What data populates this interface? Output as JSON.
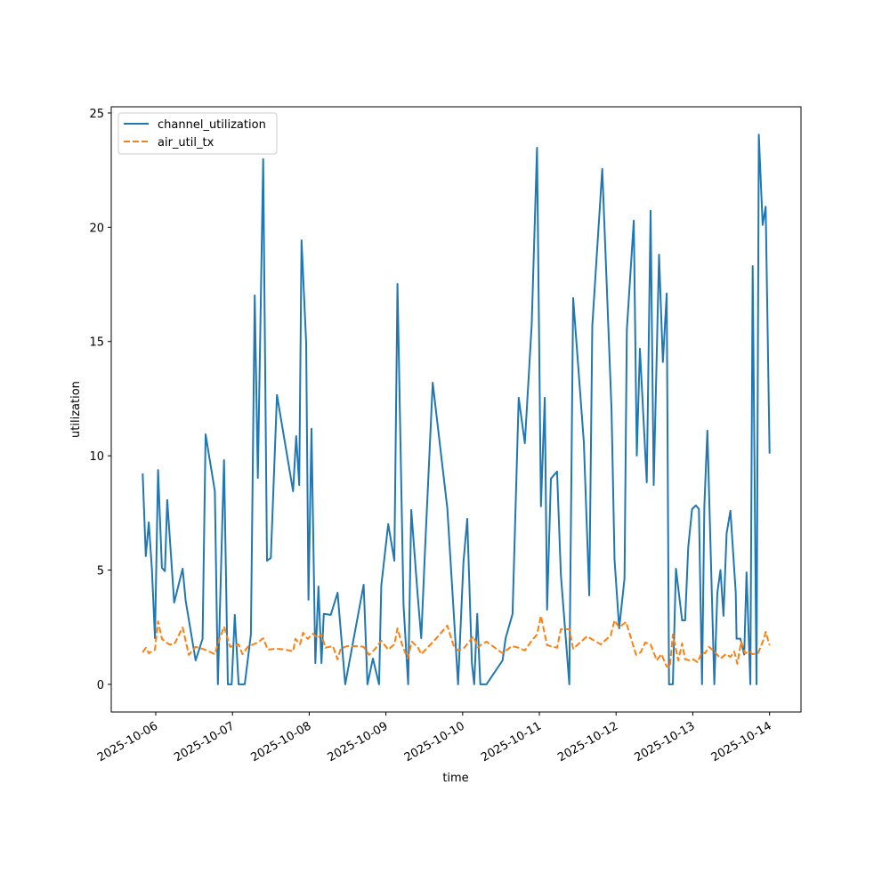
{
  "chart_data": {
    "type": "line",
    "title": "",
    "xlabel": "time",
    "ylabel": "utilization",
    "x_unit": "days since 2025-10-06 00:00",
    "xlim": [
      -0.58,
      8.41
    ],
    "ylim": [
      -1.21,
      25.27
    ],
    "grid": false,
    "legend_position": "top-left",
    "x_ticks": [
      {
        "value": 0,
        "label": "2025-10-06"
      },
      {
        "value": 1,
        "label": "2025-10-07"
      },
      {
        "value": 2,
        "label": "2025-10-08"
      },
      {
        "value": 3,
        "label": "2025-10-09"
      },
      {
        "value": 4,
        "label": "2025-10-10"
      },
      {
        "value": 5,
        "label": "2025-10-11"
      },
      {
        "value": 6,
        "label": "2025-10-12"
      },
      {
        "value": 7,
        "label": "2025-10-13"
      },
      {
        "value": 8,
        "label": "2025-10-14"
      }
    ],
    "y_ticks": [
      {
        "value": 0,
        "label": "0"
      },
      {
        "value": 5,
        "label": "5"
      },
      {
        "value": 10,
        "label": "10"
      },
      {
        "value": 15,
        "label": "15"
      },
      {
        "value": 20,
        "label": "20"
      },
      {
        "value": 25,
        "label": "25"
      }
    ],
    "series": [
      {
        "name": "channel_utilization",
        "color": "#1f77b4",
        "style": "solid",
        "points": [
          [
            -0.17,
            9.23
          ],
          [
            -0.13,
            5.61
          ],
          [
            -0.09,
            7.09
          ],
          [
            -0.05,
            5.02
          ],
          [
            -0.01,
            2.02
          ],
          [
            0.03,
            9.38
          ],
          [
            0.08,
            5.1
          ],
          [
            0.12,
            4.95
          ],
          [
            0.15,
            8.06
          ],
          [
            0.24,
            3.58
          ],
          [
            0.35,
            5.06
          ],
          [
            0.39,
            3.66
          ],
          [
            0.52,
            1.05
          ],
          [
            0.61,
            1.99
          ],
          [
            0.65,
            10.94
          ],
          [
            0.77,
            8.45
          ],
          [
            0.81,
            0
          ],
          [
            0.89,
            9.81
          ],
          [
            0.94,
            0
          ],
          [
            0.99,
            0
          ],
          [
            1.03,
            3.04
          ],
          [
            1.08,
            0
          ],
          [
            1.16,
            0
          ],
          [
            1.24,
            2.18
          ],
          [
            1.29,
            17.02
          ],
          [
            1.33,
            9.03
          ],
          [
            1.4,
            22.98
          ],
          [
            1.45,
            5.41
          ],
          [
            1.5,
            5.53
          ],
          [
            1.58,
            12.66
          ],
          [
            1.79,
            8.45
          ],
          [
            1.83,
            10.86
          ],
          [
            1.87,
            8.72
          ],
          [
            1.9,
            19.43
          ],
          [
            1.96,
            14.95
          ],
          [
            1.99,
            3.7
          ],
          [
            2.03,
            11.18
          ],
          [
            2.08,
            0.93
          ],
          [
            2.12,
            4.28
          ],
          [
            2.16,
            0.93
          ],
          [
            2.19,
            3.08
          ],
          [
            2.28,
            3.04
          ],
          [
            2.37,
            4.01
          ],
          [
            2.47,
            0
          ],
          [
            2.71,
            4.36
          ],
          [
            2.76,
            0
          ],
          [
            2.83,
            1.13
          ],
          [
            2.91,
            0
          ],
          [
            2.94,
            4.32
          ],
          [
            3.03,
            7.01
          ],
          [
            3.11,
            5.41
          ],
          [
            3.15,
            17.52
          ],
          [
            3.23,
            3.47
          ],
          [
            3.29,
            0
          ],
          [
            3.33,
            7.63
          ],
          [
            3.41,
            4.05
          ],
          [
            3.46,
            2.02
          ],
          [
            3.51,
            5.92
          ],
          [
            3.61,
            13.2
          ],
          [
            3.8,
            7.71
          ],
          [
            3.94,
            0
          ],
          [
            4.01,
            5.33
          ],
          [
            4.06,
            7.24
          ],
          [
            4.12,
            0.93
          ],
          [
            4.15,
            0
          ],
          [
            4.19,
            3.08
          ],
          [
            4.23,
            0
          ],
          [
            4.31,
            0
          ],
          [
            4.52,
            1.05
          ],
          [
            4.56,
            2.02
          ],
          [
            4.65,
            3.08
          ],
          [
            4.73,
            12.54
          ],
          [
            4.81,
            10.55
          ],
          [
            4.9,
            15.73
          ],
          [
            4.97,
            23.48
          ],
          [
            5.02,
            7.79
          ],
          [
            5.07,
            12.54
          ],
          [
            5.1,
            3.27
          ],
          [
            5.15,
            9.0
          ],
          [
            5.23,
            9.31
          ],
          [
            5.28,
            4.79
          ],
          [
            5.39,
            0
          ],
          [
            5.44,
            16.9
          ],
          [
            5.58,
            10.59
          ],
          [
            5.65,
            3.89
          ],
          [
            5.69,
            15.69
          ],
          [
            5.82,
            22.55
          ],
          [
            5.94,
            12.03
          ],
          [
            5.98,
            5.45
          ],
          [
            6.04,
            2.45
          ],
          [
            6.11,
            4.63
          ],
          [
            6.14,
            15.5
          ],
          [
            6.23,
            20.29
          ],
          [
            6.27,
            10.01
          ],
          [
            6.31,
            14.68
          ],
          [
            6.4,
            8.84
          ],
          [
            6.45,
            20.72
          ],
          [
            6.49,
            8.72
          ],
          [
            6.56,
            18.8
          ],
          [
            6.61,
            14.1
          ],
          [
            6.66,
            17.1
          ],
          [
            6.69,
            0
          ],
          [
            6.74,
            0
          ],
          [
            6.78,
            5.06
          ],
          [
            6.86,
            2.8
          ],
          [
            6.9,
            2.8
          ],
          [
            6.94,
            6.0
          ],
          [
            6.99,
            7.67
          ],
          [
            7.04,
            7.83
          ],
          [
            7.08,
            7.67
          ],
          [
            7.12,
            0
          ],
          [
            7.15,
            7.8
          ],
          [
            7.19,
            11.1
          ],
          [
            7.28,
            0
          ],
          [
            7.32,
            4.0
          ],
          [
            7.36,
            5.0
          ],
          [
            7.4,
            3.0
          ],
          [
            7.44,
            6.6
          ],
          [
            7.49,
            7.6
          ],
          [
            7.56,
            4.0
          ],
          [
            7.57,
            2.0
          ],
          [
            7.62,
            2.0
          ],
          [
            7.67,
            1.3
          ],
          [
            7.7,
            4.9
          ],
          [
            7.75,
            0
          ],
          [
            7.78,
            18.3
          ],
          [
            7.83,
            0
          ],
          [
            7.86,
            24.05
          ],
          [
            7.91,
            20.1
          ],
          [
            7.95,
            20.9
          ],
          [
            8.0,
            10.1
          ]
        ]
      },
      {
        "name": "air_util_tx",
        "color": "#ff7f0e",
        "style": "dashed",
        "points": [
          [
            -0.17,
            1.4
          ],
          [
            -0.13,
            1.6
          ],
          [
            -0.09,
            1.36
          ],
          [
            -0.01,
            1.52
          ],
          [
            0.03,
            2.76
          ],
          [
            0.08,
            1.99
          ],
          [
            0.17,
            1.75
          ],
          [
            0.24,
            1.75
          ],
          [
            0.35,
            2.49
          ],
          [
            0.43,
            1.29
          ],
          [
            0.52,
            1.64
          ],
          [
            0.64,
            1.52
          ],
          [
            0.77,
            1.32
          ],
          [
            0.8,
            1.67
          ],
          [
            0.89,
            2.53
          ],
          [
            0.97,
            1.64
          ],
          [
            1.08,
            1.75
          ],
          [
            1.13,
            1.32
          ],
          [
            1.2,
            1.64
          ],
          [
            1.27,
            1.75
          ],
          [
            1.33,
            1.83
          ],
          [
            1.4,
            2.02
          ],
          [
            1.46,
            1.52
          ],
          [
            1.57,
            1.56
          ],
          [
            1.69,
            1.52
          ],
          [
            1.79,
            1.44
          ],
          [
            1.82,
            1.99
          ],
          [
            1.88,
            1.75
          ],
          [
            1.92,
            2.26
          ],
          [
            1.98,
            1.99
          ],
          [
            2.05,
            2.22
          ],
          [
            2.11,
            2.02
          ],
          [
            2.16,
            2.18
          ],
          [
            2.21,
            1.6
          ],
          [
            2.31,
            1.67
          ],
          [
            2.37,
            1.09
          ],
          [
            2.41,
            1.56
          ],
          [
            2.49,
            1.67
          ],
          [
            2.64,
            1.67
          ],
          [
            2.71,
            1.64
          ],
          [
            2.78,
            1.29
          ],
          [
            2.86,
            1.56
          ],
          [
            2.94,
            1.91
          ],
          [
            3.03,
            1.52
          ],
          [
            3.11,
            1.75
          ],
          [
            3.15,
            2.45
          ],
          [
            3.21,
            1.75
          ],
          [
            3.28,
            1.13
          ],
          [
            3.34,
            1.87
          ],
          [
            3.42,
            1.6
          ],
          [
            3.46,
            1.32
          ],
          [
            3.65,
            1.99
          ],
          [
            3.8,
            2.57
          ],
          [
            3.88,
            1.71
          ],
          [
            3.94,
            1.48
          ],
          [
            4.01,
            1.56
          ],
          [
            4.14,
            2.1
          ],
          [
            4.2,
            1.6
          ],
          [
            4.23,
            1.71
          ],
          [
            4.31,
            1.87
          ],
          [
            4.52,
            1.36
          ],
          [
            4.64,
            1.67
          ],
          [
            4.73,
            1.6
          ],
          [
            4.81,
            1.48
          ],
          [
            4.9,
            1.91
          ],
          [
            4.97,
            2.18
          ],
          [
            5.02,
            3.0
          ],
          [
            5.1,
            1.71
          ],
          [
            5.23,
            1.6
          ],
          [
            5.28,
            2.41
          ],
          [
            5.39,
            2.41
          ],
          [
            5.44,
            1.56
          ],
          [
            5.62,
            2.1
          ],
          [
            5.8,
            1.75
          ],
          [
            5.93,
            2.14
          ],
          [
            5.98,
            2.8
          ],
          [
            6.04,
            2.49
          ],
          [
            6.13,
            2.73
          ],
          [
            6.26,
            1.29
          ],
          [
            6.32,
            1.4
          ],
          [
            6.38,
            1.83
          ],
          [
            6.45,
            1.75
          ],
          [
            6.53,
            1.05
          ],
          [
            6.59,
            1.32
          ],
          [
            6.66,
            0.78
          ],
          [
            6.7,
            0.74
          ],
          [
            6.74,
            2.18
          ],
          [
            6.81,
            1.05
          ],
          [
            6.86,
            1.79
          ],
          [
            6.9,
            1.09
          ],
          [
            6.96,
            1.05
          ],
          [
            7.01,
            1.09
          ],
          [
            7.06,
            0.97
          ],
          [
            7.12,
            1.4
          ],
          [
            7.16,
            1.36
          ],
          [
            7.21,
            1.64
          ],
          [
            7.28,
            1.44
          ],
          [
            7.36,
            1.13
          ],
          [
            7.43,
            1.32
          ],
          [
            7.49,
            1.2
          ],
          [
            7.54,
            1.44
          ],
          [
            7.58,
            0.9
          ],
          [
            7.63,
            1.87
          ],
          [
            7.68,
            1.36
          ],
          [
            7.74,
            1.44
          ],
          [
            7.78,
            1.32
          ],
          [
            7.85,
            1.36
          ],
          [
            7.93,
            2.02
          ],
          [
            7.95,
            2.3
          ],
          [
            8.0,
            1.71
          ]
        ]
      }
    ]
  }
}
